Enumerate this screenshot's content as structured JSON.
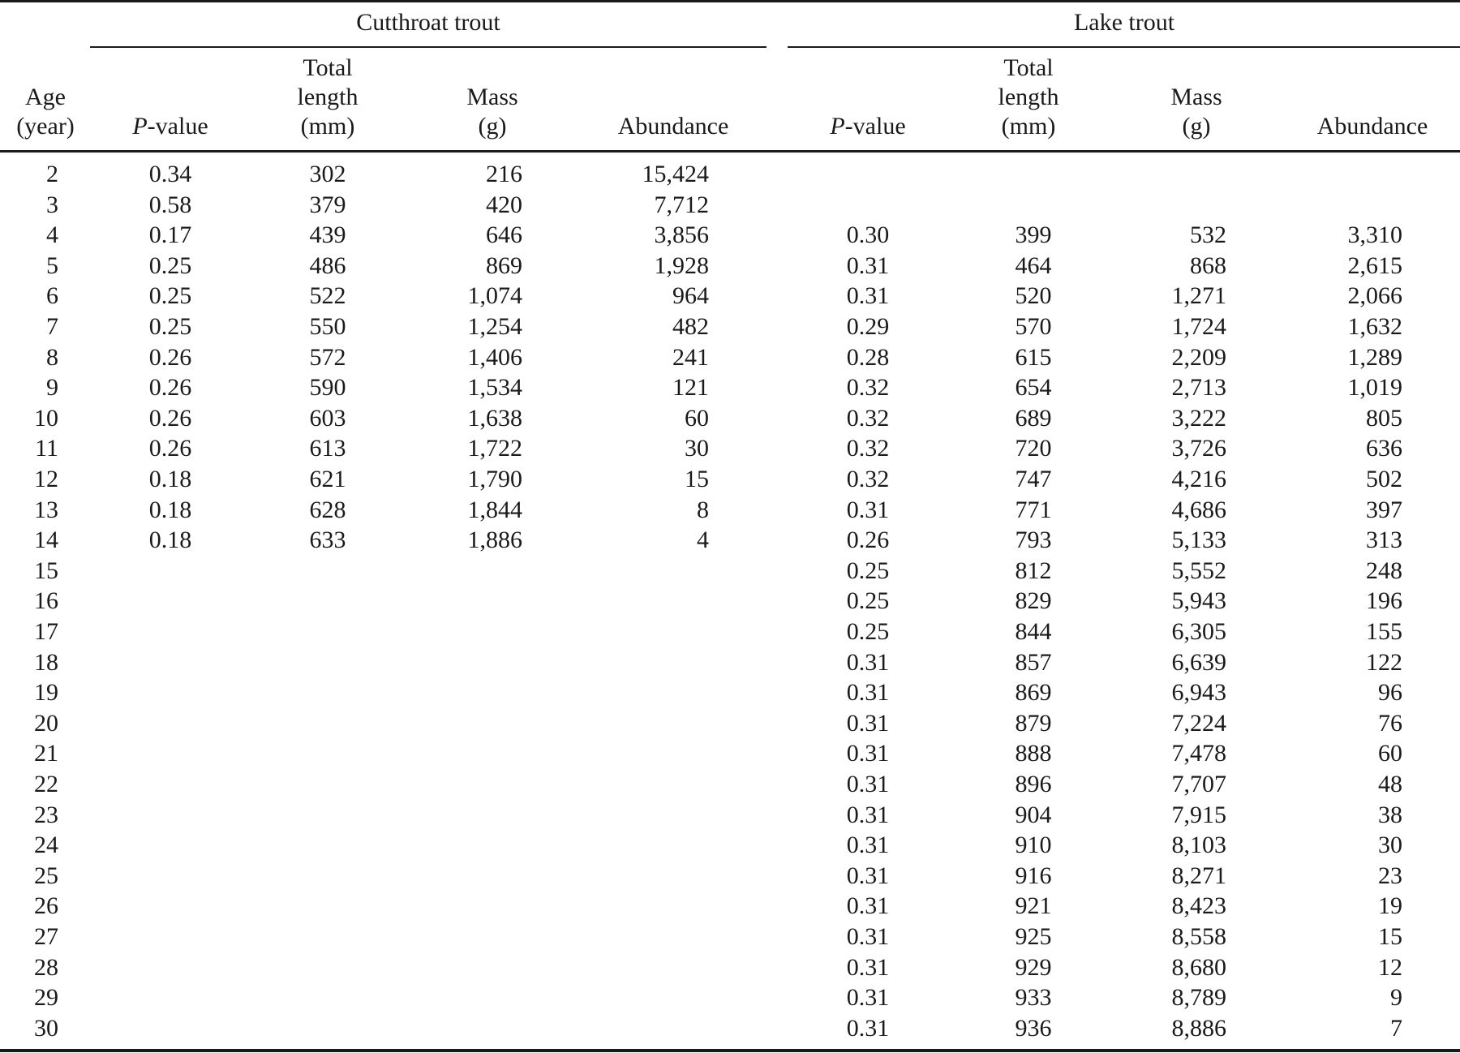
{
  "groups": {
    "cutthroat": "Cutthroat trout",
    "lake": "Lake trout"
  },
  "headers": {
    "age": [
      "Age",
      "(year)"
    ],
    "p_italic": "P",
    "p_rest": "-value",
    "total_length": [
      "Total",
      "length",
      "(mm)"
    ],
    "mass": [
      "Mass",
      "(g)"
    ],
    "abundance": "Abundance"
  },
  "rows": [
    {
      "age": "2",
      "c_p": "0.34",
      "c_len": "302",
      "c_mass": "216",
      "c_abund": "15,424",
      "l_p": "",
      "l_len": "",
      "l_mass": "",
      "l_abund": ""
    },
    {
      "age": "3",
      "c_p": "0.58",
      "c_len": "379",
      "c_mass": "420",
      "c_abund": "7,712",
      "l_p": "",
      "l_len": "",
      "l_mass": "",
      "l_abund": ""
    },
    {
      "age": "4",
      "c_p": "0.17",
      "c_len": "439",
      "c_mass": "646",
      "c_abund": "3,856",
      "l_p": "0.30",
      "l_len": "399",
      "l_mass": "532",
      "l_abund": "3,310"
    },
    {
      "age": "5",
      "c_p": "0.25",
      "c_len": "486",
      "c_mass": "869",
      "c_abund": "1,928",
      "l_p": "0.31",
      "l_len": "464",
      "l_mass": "868",
      "l_abund": "2,615"
    },
    {
      "age": "6",
      "c_p": "0.25",
      "c_len": "522",
      "c_mass": "1,074",
      "c_abund": "964",
      "l_p": "0.31",
      "l_len": "520",
      "l_mass": "1,271",
      "l_abund": "2,066"
    },
    {
      "age": "7",
      "c_p": "0.25",
      "c_len": "550",
      "c_mass": "1,254",
      "c_abund": "482",
      "l_p": "0.29",
      "l_len": "570",
      "l_mass": "1,724",
      "l_abund": "1,632"
    },
    {
      "age": "8",
      "c_p": "0.26",
      "c_len": "572",
      "c_mass": "1,406",
      "c_abund": "241",
      "l_p": "0.28",
      "l_len": "615",
      "l_mass": "2,209",
      "l_abund": "1,289"
    },
    {
      "age": "9",
      "c_p": "0.26",
      "c_len": "590",
      "c_mass": "1,534",
      "c_abund": "121",
      "l_p": "0.32",
      "l_len": "654",
      "l_mass": "2,713",
      "l_abund": "1,019"
    },
    {
      "age": "10",
      "c_p": "0.26",
      "c_len": "603",
      "c_mass": "1,638",
      "c_abund": "60",
      "l_p": "0.32",
      "l_len": "689",
      "l_mass": "3,222",
      "l_abund": "805"
    },
    {
      "age": "11",
      "c_p": "0.26",
      "c_len": "613",
      "c_mass": "1,722",
      "c_abund": "30",
      "l_p": "0.32",
      "l_len": "720",
      "l_mass": "3,726",
      "l_abund": "636"
    },
    {
      "age": "12",
      "c_p": "0.18",
      "c_len": "621",
      "c_mass": "1,790",
      "c_abund": "15",
      "l_p": "0.32",
      "l_len": "747",
      "l_mass": "4,216",
      "l_abund": "502"
    },
    {
      "age": "13",
      "c_p": "0.18",
      "c_len": "628",
      "c_mass": "1,844",
      "c_abund": "8",
      "l_p": "0.31",
      "l_len": "771",
      "l_mass": "4,686",
      "l_abund": "397"
    },
    {
      "age": "14",
      "c_p": "0.18",
      "c_len": "633",
      "c_mass": "1,886",
      "c_abund": "4",
      "l_p": "0.26",
      "l_len": "793",
      "l_mass": "5,133",
      "l_abund": "313"
    },
    {
      "age": "15",
      "c_p": "",
      "c_len": "",
      "c_mass": "",
      "c_abund": "",
      "l_p": "0.25",
      "l_len": "812",
      "l_mass": "5,552",
      "l_abund": "248"
    },
    {
      "age": "16",
      "c_p": "",
      "c_len": "",
      "c_mass": "",
      "c_abund": "",
      "l_p": "0.25",
      "l_len": "829",
      "l_mass": "5,943",
      "l_abund": "196"
    },
    {
      "age": "17",
      "c_p": "",
      "c_len": "",
      "c_mass": "",
      "c_abund": "",
      "l_p": "0.25",
      "l_len": "844",
      "l_mass": "6,305",
      "l_abund": "155"
    },
    {
      "age": "18",
      "c_p": "",
      "c_len": "",
      "c_mass": "",
      "c_abund": "",
      "l_p": "0.31",
      "l_len": "857",
      "l_mass": "6,639",
      "l_abund": "122"
    },
    {
      "age": "19",
      "c_p": "",
      "c_len": "",
      "c_mass": "",
      "c_abund": "",
      "l_p": "0.31",
      "l_len": "869",
      "l_mass": "6,943",
      "l_abund": "96"
    },
    {
      "age": "20",
      "c_p": "",
      "c_len": "",
      "c_mass": "",
      "c_abund": "",
      "l_p": "0.31",
      "l_len": "879",
      "l_mass": "7,224",
      "l_abund": "76"
    },
    {
      "age": "21",
      "c_p": "",
      "c_len": "",
      "c_mass": "",
      "c_abund": "",
      "l_p": "0.31",
      "l_len": "888",
      "l_mass": "7,478",
      "l_abund": "60"
    },
    {
      "age": "22",
      "c_p": "",
      "c_len": "",
      "c_mass": "",
      "c_abund": "",
      "l_p": "0.31",
      "l_len": "896",
      "l_mass": "7,707",
      "l_abund": "48"
    },
    {
      "age": "23",
      "c_p": "",
      "c_len": "",
      "c_mass": "",
      "c_abund": "",
      "l_p": "0.31",
      "l_len": "904",
      "l_mass": "7,915",
      "l_abund": "38"
    },
    {
      "age": "24",
      "c_p": "",
      "c_len": "",
      "c_mass": "",
      "c_abund": "",
      "l_p": "0.31",
      "l_len": "910",
      "l_mass": "8,103",
      "l_abund": "30"
    },
    {
      "age": "25",
      "c_p": "",
      "c_len": "",
      "c_mass": "",
      "c_abund": "",
      "l_p": "0.31",
      "l_len": "916",
      "l_mass": "8,271",
      "l_abund": "23"
    },
    {
      "age": "26",
      "c_p": "",
      "c_len": "",
      "c_mass": "",
      "c_abund": "",
      "l_p": "0.31",
      "l_len": "921",
      "l_mass": "8,423",
      "l_abund": "19"
    },
    {
      "age": "27",
      "c_p": "",
      "c_len": "",
      "c_mass": "",
      "c_abund": "",
      "l_p": "0.31",
      "l_len": "925",
      "l_mass": "8,558",
      "l_abund": "15"
    },
    {
      "age": "28",
      "c_p": "",
      "c_len": "",
      "c_mass": "",
      "c_abund": "",
      "l_p": "0.31",
      "l_len": "929",
      "l_mass": "8,680",
      "l_abund": "12"
    },
    {
      "age": "29",
      "c_p": "",
      "c_len": "",
      "c_mass": "",
      "c_abund": "",
      "l_p": "0.31",
      "l_len": "933",
      "l_mass": "8,789",
      "l_abund": "9"
    },
    {
      "age": "30",
      "c_p": "",
      "c_len": "",
      "c_mass": "",
      "c_abund": "",
      "l_p": "0.31",
      "l_len": "936",
      "l_mass": "8,886",
      "l_abund": "7"
    }
  ]
}
